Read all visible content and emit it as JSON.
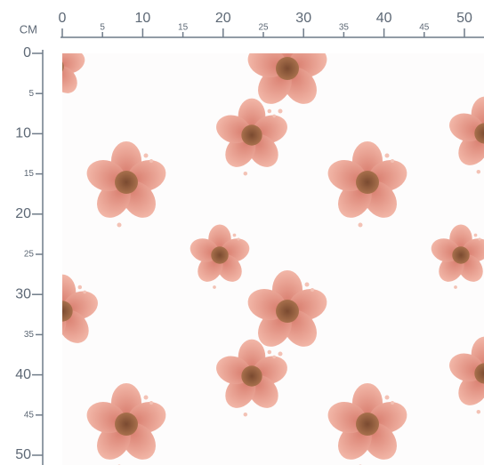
{
  "ruler": {
    "unit": "CM",
    "x_labels": [
      0,
      5,
      10,
      15,
      20,
      25,
      30,
      35,
      40,
      45,
      50
    ],
    "y_labels": [
      0,
      5,
      10,
      15,
      20,
      25,
      30,
      35,
      40,
      45,
      50
    ]
  }
}
